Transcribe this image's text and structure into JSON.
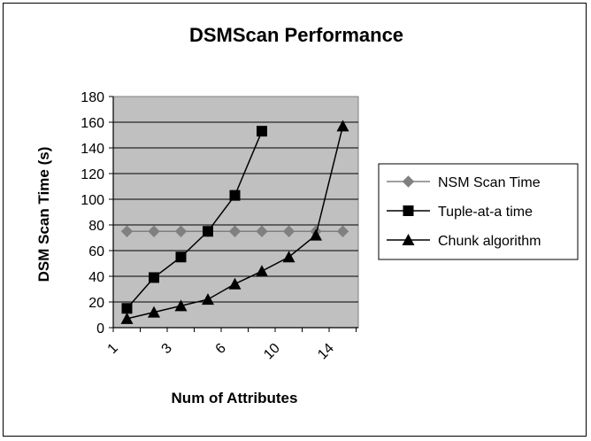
{
  "chart_data": {
    "type": "line",
    "title": "DSMScan Performance",
    "xlabel": "Num of Attributes",
    "ylabel": "DSM Scan Time (s)",
    "ylim": [
      0,
      180
    ],
    "yticks": [
      "0",
      "20",
      "40",
      "60",
      "80",
      "100",
      "120",
      "140",
      "160",
      "180"
    ],
    "xtick_labels": [
      "1",
      "3",
      "6",
      "10",
      "14"
    ],
    "grid": true,
    "plot_background": "#c0c0c0",
    "legend_position": "right",
    "series": [
      {
        "name": "NSM Scan Time",
        "marker": "diamond",
        "color": "#808080",
        "values": [
          75,
          75,
          75,
          75,
          75,
          75,
          75,
          75,
          75
        ]
      },
      {
        "name": "Tuple-at-a time",
        "marker": "square",
        "color": "#000000",
        "values": [
          15,
          39,
          55,
          75,
          103,
          153,
          null,
          null,
          null
        ]
      },
      {
        "name": "Chunk algorithm",
        "marker": "triangle",
        "color": "#000000",
        "values": [
          7,
          12,
          17,
          22,
          34,
          44,
          55,
          72,
          157
        ]
      }
    ]
  }
}
